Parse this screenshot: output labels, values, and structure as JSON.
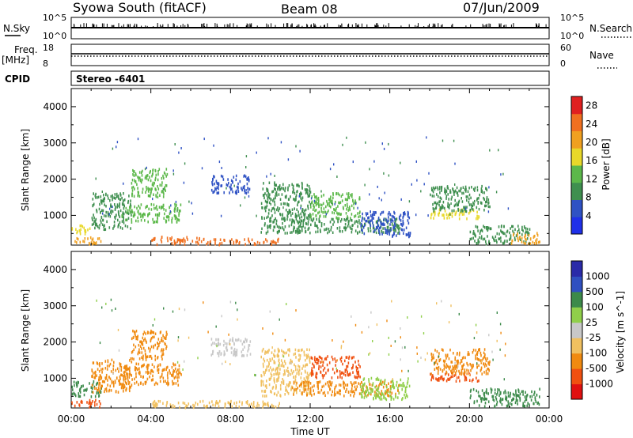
{
  "header": {
    "station": "Syowa South (fitACF)",
    "beam": "Beam 08",
    "date": "07/Jun/2009"
  },
  "top_panels": {
    "nsky_label": "N.Sky",
    "nsky_tick_top": "10^5",
    "nsky_tick_bottom": "10^0",
    "nsearch_label": "N.Search",
    "nsearch_tick_top": "10^5",
    "nsearch_tick_bottom": "10^0",
    "freq_label": "Freq.",
    "freq_unit": "[MHz]",
    "freq_tick_top": "18",
    "freq_tick_bottom": "8",
    "nave_label": "Nave",
    "nave_tick_top": "60",
    "nave_tick_bottom": "0",
    "cpid_label": "CPID",
    "cpid_value": "Stereo -6401"
  },
  "colors": {
    "power_scale": [
      "#1f30e8",
      "#2f52c4",
      "#3f8f4f",
      "#5cb84a",
      "#e8d82a",
      "#f0a020",
      "#f07020",
      "#e02020"
    ],
    "velocity_scale": [
      "#e01010",
      "#f05010",
      "#f08a10",
      "#f0c060",
      "#c8c8c8",
      "#90cf4a",
      "#3c8a4a",
      "#3050c0",
      "#2a2aa8"
    ]
  },
  "chart_data": [
    {
      "type": "heatmap",
      "name": "power",
      "ylabel": "Slant Range [km]",
      "ylim": [
        180,
        4500
      ],
      "yticks": [
        "1000",
        "2000",
        "3000",
        "4000"
      ],
      "ytick_values": [
        1000,
        2000,
        3000,
        4000
      ],
      "colorbar_label": "Power [dB]",
      "colorbar_range": [
        0,
        30
      ],
      "colorbar_ticks": [
        "4",
        "8",
        "12",
        "16",
        "20",
        "24",
        "28"
      ],
      "colorbar_tick_values": [
        4,
        8,
        12,
        16,
        20,
        24,
        28
      ],
      "clusters": [
        {
          "t": [
            0.0,
            1.5
          ],
          "r": [
            180,
            380
          ],
          "level": 22
        },
        {
          "t": [
            0.0,
            1.0
          ],
          "r": [
            480,
            720
          ],
          "level": 18
        },
        {
          "t": [
            1.0,
            3.0
          ],
          "r": [
            600,
            1600
          ],
          "level": 8
        },
        {
          "t": [
            2.5,
            5.5
          ],
          "r": [
            800,
            1300
          ],
          "level": 12
        },
        {
          "t": [
            3.0,
            4.8
          ],
          "r": [
            1500,
            2300
          ],
          "level": 14
        },
        {
          "t": [
            4.0,
            6.5
          ],
          "r": [
            180,
            400
          ],
          "level": 26
        },
        {
          "t": [
            6.5,
            10.5
          ],
          "r": [
            180,
            350
          ],
          "level": 24
        },
        {
          "t": [
            7.0,
            9.0
          ],
          "r": [
            1600,
            2100
          ],
          "level": 6
        },
        {
          "t": [
            9.5,
            12.0
          ],
          "r": [
            500,
            1900
          ],
          "level": 8
        },
        {
          "t": [
            12.0,
            14.5
          ],
          "r": [
            900,
            1600
          ],
          "level": 14
        },
        {
          "t": [
            11.0,
            16.5
          ],
          "r": [
            500,
            900
          ],
          "level": 10
        },
        {
          "t": [
            14.5,
            17.0
          ],
          "r": [
            400,
            1100
          ],
          "level": 7
        },
        {
          "t": [
            18.0,
            20.5
          ],
          "r": [
            900,
            1150
          ],
          "level": 16
        },
        {
          "t": [
            18.0,
            21.0
          ],
          "r": [
            1100,
            1800
          ],
          "level": 8
        },
        {
          "t": [
            20.0,
            23.0
          ],
          "r": [
            200,
            700
          ],
          "level": 10
        },
        {
          "t": [
            22.0,
            23.5
          ],
          "r": [
            200,
            500
          ],
          "level": 20
        }
      ]
    },
    {
      "type": "heatmap",
      "name": "velocity",
      "ylabel": "Slant Range [km]",
      "ylim": [
        180,
        4500
      ],
      "yticks": [
        "1000",
        "2000",
        "3000",
        "4000"
      ],
      "ytick_values": [
        1000,
        2000,
        3000,
        4000
      ],
      "colorbar_label": "Velocity [m s^-1]",
      "colorbar_ticks": [
        "1000",
        "500",
        "100",
        "25",
        "-25",
        "-100",
        "-500",
        "-1000"
      ],
      "xlabel": "Time UT",
      "xlim": [
        0,
        24
      ],
      "xticks": [
        "00:00",
        "04:00",
        "08:00",
        "12:00",
        "16:00",
        "20:00",
        "00:00"
      ],
      "xtick_values": [
        0,
        4,
        8,
        12,
        16,
        20,
        24
      ],
      "clusters": [
        {
          "t": [
            0.0,
            1.5
          ],
          "r": [
            180,
            400
          ],
          "level": 1
        },
        {
          "t": [
            0.0,
            1.5
          ],
          "r": [
            480,
            900
          ],
          "level": 6
        },
        {
          "t": [
            1.0,
            3.0
          ],
          "r": [
            600,
            1500
          ],
          "level": 2
        },
        {
          "t": [
            2.5,
            5.5
          ],
          "r": [
            800,
            1400
          ],
          "level": 2
        },
        {
          "t": [
            3.0,
            4.8
          ],
          "r": [
            1500,
            2300
          ],
          "level": 2
        },
        {
          "t": [
            4.0,
            10.5
          ],
          "r": [
            180,
            360
          ],
          "level": 3
        },
        {
          "t": [
            7.0,
            9.0
          ],
          "r": [
            1600,
            2100
          ],
          "level": 4
        },
        {
          "t": [
            9.5,
            12.0
          ],
          "r": [
            500,
            1800
          ],
          "level": 3
        },
        {
          "t": [
            12.0,
            14.5
          ],
          "r": [
            1000,
            1600
          ],
          "level": 1
        },
        {
          "t": [
            11.0,
            16.5
          ],
          "r": [
            500,
            900
          ],
          "level": 2
        },
        {
          "t": [
            14.5,
            17.0
          ],
          "r": [
            400,
            1000
          ],
          "level": 5
        },
        {
          "t": [
            18.0,
            20.5
          ],
          "r": [
            900,
            1150
          ],
          "level": 1
        },
        {
          "t": [
            18.0,
            21.0
          ],
          "r": [
            1100,
            1800
          ],
          "level": 2
        },
        {
          "t": [
            20.0,
            23.5
          ],
          "r": [
            200,
            700
          ],
          "level": 6
        }
      ]
    }
  ]
}
